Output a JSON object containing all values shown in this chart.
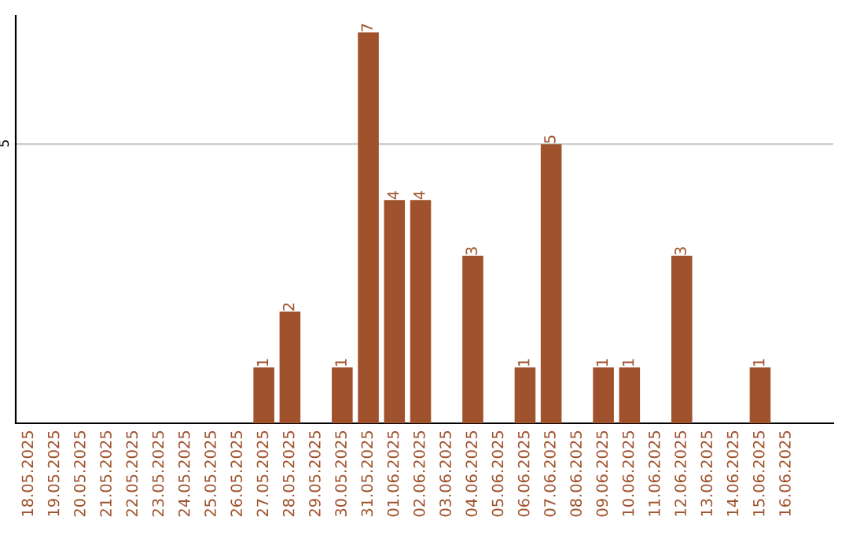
{
  "chart_data": {
    "type": "bar",
    "categories": [
      "18.05.2025",
      "19.05.2025",
      "20.05.2025",
      "21.05.2025",
      "22.05.2025",
      "23.05.2025",
      "24.05.2025",
      "25.05.2025",
      "26.05.2025",
      "27.05.2025",
      "28.05.2025",
      "29.05.2025",
      "30.05.2025",
      "31.05.2025",
      "01.06.2025",
      "02.06.2025",
      "03.06.2025",
      "04.06.2025",
      "05.06.2025",
      "06.06.2025",
      "07.06.2025",
      "08.06.2025",
      "09.06.2025",
      "10.06.2025",
      "11.06.2025",
      "12.06.2025",
      "13.06.2025",
      "14.06.2025",
      "15.06.2025",
      "16.06.2025"
    ],
    "values": [
      0,
      0,
      0,
      0,
      0,
      0,
      0,
      0,
      0,
      1,
      2,
      0,
      1,
      7,
      4,
      4,
      0,
      3,
      0,
      1,
      5,
      0,
      1,
      1,
      0,
      3,
      0,
      0,
      1,
      0
    ],
    "value_labels": [
      null,
      null,
      null,
      null,
      null,
      null,
      null,
      null,
      null,
      "1",
      "2",
      null,
      "1",
      "7",
      "4",
      "4",
      null,
      "3",
      null,
      "1",
      "5",
      null,
      "1",
      "1",
      null,
      "3",
      null,
      null,
      "1",
      null
    ],
    "color": "#a0522d",
    "ylim": [
      0,
      7.3
    ],
    "yticks": [
      5
    ],
    "grid": "y"
  }
}
